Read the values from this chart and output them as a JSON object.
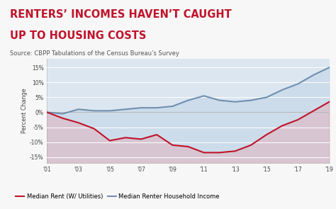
{
  "title_line1": "RENTERS’ INCOMES HAVEN’T CAUGHT",
  "title_line2": "UP TO HOUSING COSTS",
  "source": "Source: CBPP Tabulations of the Census Bureau’s Survey",
  "title_color": "#c0132a",
  "source_color": "#555555",
  "background_color": "#f7f7f7",
  "plot_bg_color": "#dce6f0",
  "rent_years": [
    2001,
    2002,
    2003,
    2004,
    2005,
    2006,
    2007,
    2008,
    2009,
    2010,
    2011,
    2012,
    2013,
    2014,
    2015,
    2016,
    2017,
    2018,
    2019
  ],
  "rent_data": [
    0.0,
    -2.0,
    -3.5,
    -5.5,
    -9.5,
    -8.5,
    -9.0,
    -7.5,
    -11.0,
    -11.5,
    -13.5,
    -13.5,
    -13.0,
    -11.0,
    -7.5,
    -4.5,
    -2.5,
    0.5,
    3.5
  ],
  "income_data": [
    0.0,
    -0.5,
    1.0,
    0.5,
    0.5,
    1.0,
    1.5,
    1.5,
    2.0,
    4.0,
    5.5,
    4.0,
    3.5,
    4.0,
    5.0,
    7.5,
    9.5,
    12.5,
    15.0
  ],
  "rent_color": "#c0132a",
  "income_color": "#7090b0",
  "fill_between_color": "#c8d8e8",
  "fill_alpha": 0.7,
  "ylabel": "Percent Change",
  "ylim": [
    -17,
    18
  ],
  "yticks": [
    -15,
    -10,
    -5,
    0,
    5,
    10,
    15
  ],
  "ytick_labels": [
    "-15%",
    "-10%",
    "-5%",
    "0%",
    "5%",
    "10%",
    "15%"
  ],
  "xtick_years": [
    2001,
    2003,
    2005,
    2007,
    2009,
    2011,
    2013,
    2015,
    2017,
    2019
  ],
  "xtick_labels": [
    "'01",
    "'03",
    "'05",
    "'07",
    "'09",
    "'11",
    "'13",
    "'15",
    "'17",
    "'19"
  ],
  "legend_rent": "Median Rent (W/ Utilities)",
  "legend_income": "Median Renter Household Income"
}
